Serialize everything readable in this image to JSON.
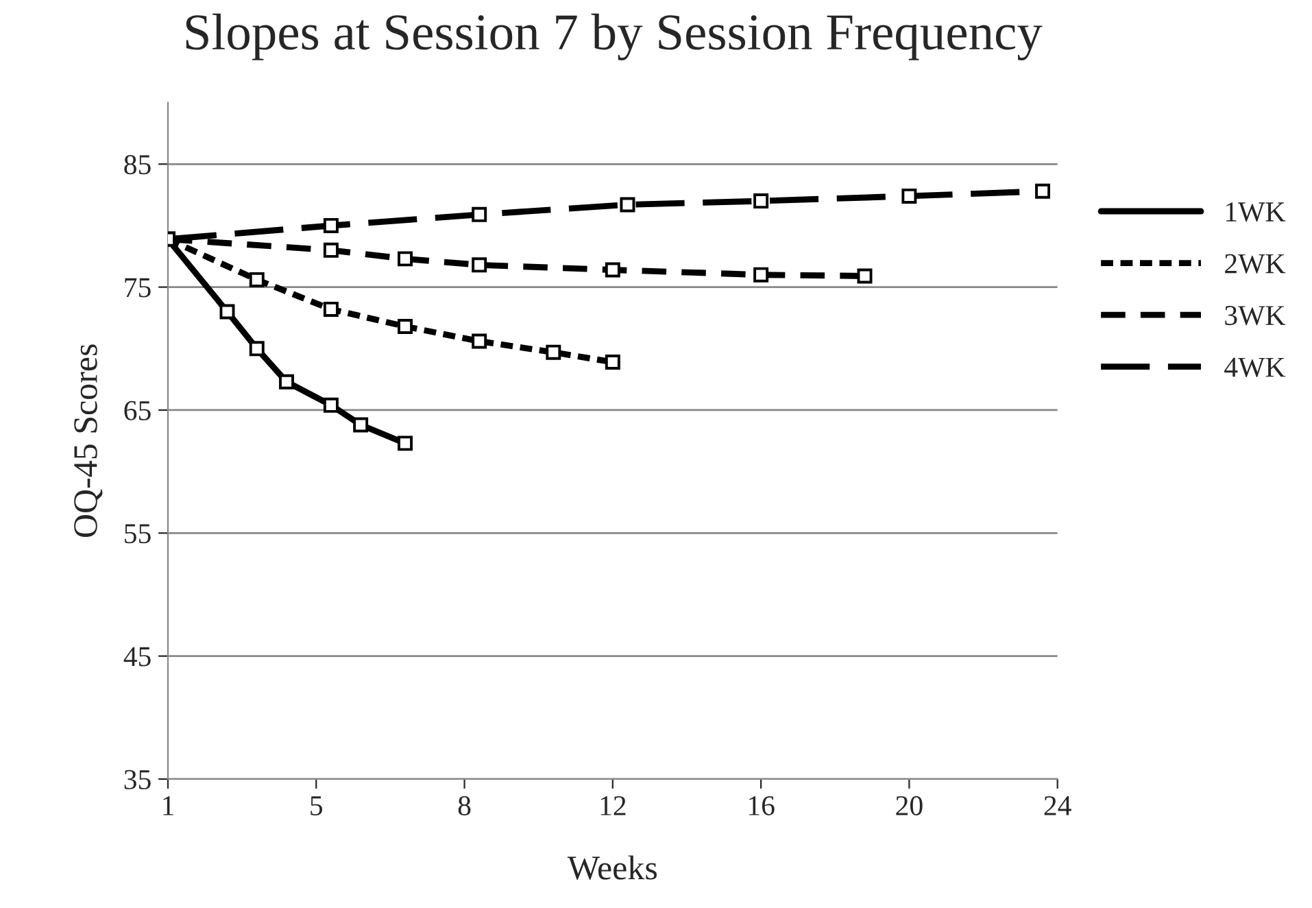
{
  "chart_data": {
    "type": "line",
    "title": "Slopes at Session 7 by Session Frequency",
    "xlabel": "Weeks",
    "ylabel": "OQ-45 Scores",
    "categories": [
      "1",
      null,
      null,
      null,
      null,
      null,
      null,
      null,
      null,
      null,
      "5",
      null,
      null,
      null,
      null,
      null,
      null,
      null,
      null,
      null,
      "8",
      null,
      null,
      null,
      null,
      null,
      null,
      null,
      null,
      null,
      "12",
      null,
      null,
      null,
      null,
      null,
      null,
      null,
      null,
      null,
      "16",
      null,
      null,
      null,
      null,
      null,
      null,
      null,
      null,
      null,
      "20",
      null,
      null,
      null,
      null,
      null,
      null,
      null,
      null,
      null,
      "24"
    ],
    "ylim": [
      35,
      90
    ],
    "yticks": [
      35,
      45,
      55,
      65,
      75,
      85
    ],
    "grid": "y",
    "legend": "right",
    "marker": "square",
    "series": [
      {
        "name": "1WK",
        "color": "#000000",
        "line_style": "solid",
        "values": [
          78.9,
          null,
          null,
          null,
          73.0,
          null,
          70.0,
          null,
          67.3,
          null,
          null,
          65.4,
          null,
          63.8,
          null,
          null,
          62.3,
          null,
          null,
          null,
          null,
          null,
          null,
          null,
          null,
          null,
          null,
          null,
          null,
          null,
          null,
          null,
          null,
          null,
          null,
          null,
          null,
          null,
          null,
          null,
          null,
          null,
          null,
          null,
          null,
          null,
          null,
          null,
          null,
          null,
          null,
          null,
          null,
          null,
          null,
          null,
          null,
          null,
          null,
          null,
          null
        ]
      },
      {
        "name": "2WK",
        "color": "#000000",
        "line_style": "dotted",
        "values": [
          78.9,
          null,
          null,
          null,
          null,
          null,
          75.6,
          null,
          null,
          null,
          null,
          73.2,
          null,
          null,
          null,
          null,
          71.8,
          null,
          null,
          null,
          null,
          70.6,
          null,
          null,
          null,
          null,
          69.7,
          null,
          null,
          null,
          68.9,
          null,
          null,
          null,
          null,
          null,
          null,
          null,
          null,
          null,
          null,
          null,
          null,
          null,
          null,
          null,
          null,
          null,
          null,
          null,
          null,
          null,
          null,
          null,
          null,
          null,
          null,
          null,
          null,
          null,
          null
        ]
      },
      {
        "name": "3WK",
        "color": "#000000",
        "line_style": "dashed",
        "values": [
          78.9,
          null,
          null,
          null,
          null,
          null,
          null,
          null,
          null,
          null,
          null,
          78.0,
          null,
          null,
          null,
          null,
          77.3,
          null,
          null,
          null,
          null,
          76.8,
          null,
          null,
          null,
          null,
          null,
          null,
          null,
          null,
          76.4,
          null,
          null,
          null,
          null,
          null,
          null,
          null,
          null,
          null,
          76.0,
          null,
          null,
          null,
          null,
          null,
          null,
          75.9,
          null,
          null,
          null,
          null,
          null,
          null,
          null,
          null,
          null,
          null,
          null,
          null,
          null
        ]
      },
      {
        "name": "4WK",
        "color": "#000000",
        "line_style": "longdashed",
        "values": [
          78.9,
          null,
          null,
          null,
          null,
          null,
          null,
          null,
          null,
          null,
          null,
          80.0,
          null,
          null,
          null,
          null,
          null,
          null,
          null,
          null,
          null,
          80.9,
          null,
          null,
          null,
          null,
          null,
          null,
          null,
          null,
          null,
          81.7,
          null,
          null,
          null,
          null,
          null,
          null,
          null,
          null,
          82.0,
          null,
          null,
          null,
          null,
          null,
          null,
          null,
          null,
          null,
          82.4,
          null,
          null,
          null,
          null,
          null,
          null,
          null,
          null,
          82.8,
          null
        ]
      }
    ]
  }
}
